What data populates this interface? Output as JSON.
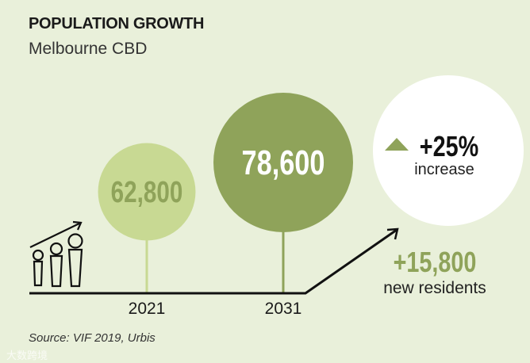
{
  "title": "POPULATION GROWTH",
  "subtitle": "Melbourne CBD",
  "source": "Source: VIF 2019, Urbis",
  "watermark": "大数跨境",
  "colors": {
    "background": "#e9f0da",
    "light_green": "#c8d993",
    "dark_green": "#8fa35a",
    "white": "#ffffff",
    "text": "#1a1a1a"
  },
  "chart_data": {
    "type": "bubble",
    "title": "POPULATION GROWTH",
    "subtitle": "Melbourne CBD",
    "categories": [
      "2021",
      "2031"
    ],
    "values": [
      62800,
      78600
    ],
    "value_labels": [
      "62,800",
      "78,600"
    ],
    "change": {
      "percent_label": "+25%",
      "percent_text": "increase",
      "absolute_label": "+15,800",
      "absolute_text": "new residents"
    },
    "icons": [
      "people-growth-icon",
      "up-triangle-icon",
      "trend-arrow-icon"
    ]
  }
}
